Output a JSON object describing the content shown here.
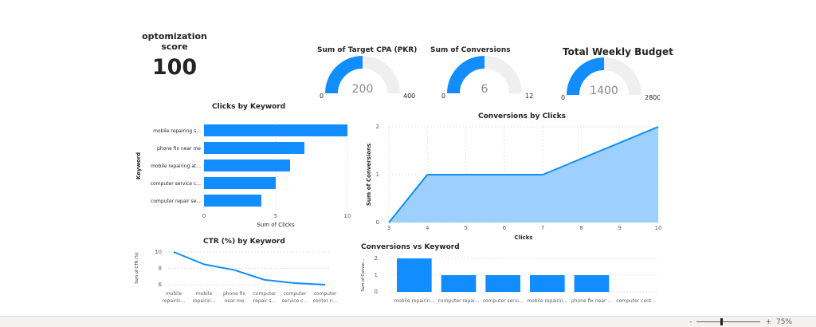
{
  "kpi": {
    "title_line1": "optomization",
    "title_line2": "score",
    "value": "100"
  },
  "gauges": [
    {
      "title": "Sum of Target CPA (PKR)",
      "min": "0",
      "value": "200",
      "max": "400",
      "fraction": 0.5
    },
    {
      "title": "Sum of Conversions",
      "min": "0",
      "value": "6",
      "max": "12",
      "fraction": 0.5
    },
    {
      "title": "Total Weekly Budget",
      "min": "0",
      "value": "1400",
      "max": "2800",
      "fraction": 0.5
    }
  ],
  "colors": {
    "accent": "#118DFF",
    "track": "#F0EFEF",
    "area": "#9ED0FF",
    "grid": "#E6E6E6",
    "text": "#605E5C"
  },
  "statusbar": {
    "minus": "-",
    "plus": "+",
    "zoom": "75%"
  },
  "chart_data": [
    {
      "id": "clicks-by-keyword",
      "type": "bar",
      "orientation": "horizontal",
      "title": "Clicks by Keyword",
      "xlabel": "Sum of Clicks",
      "ylabel": "Keyword",
      "categories": [
        "mobile repairing s...",
        "phone fix near me",
        "mobile repairing at...",
        "computer service c...",
        "computer repair se..."
      ],
      "values": [
        10,
        7,
        6,
        5,
        4
      ],
      "xlim": [
        0,
        10
      ],
      "xticks": [
        "0",
        "5",
        "10"
      ]
    },
    {
      "id": "conversions-by-clicks",
      "type": "area",
      "title": "Conversions by Clicks",
      "xlabel": "Clicks",
      "ylabel": "Sum of Conversions",
      "x": [
        3,
        4,
        7,
        10
      ],
      "y": [
        0,
        1,
        1,
        2
      ],
      "xlim": [
        3,
        10
      ],
      "ylim": [
        0,
        2
      ],
      "xticks": [
        "3",
        "4",
        "5",
        "6",
        "7",
        "8",
        "9",
        "10"
      ],
      "yticks": [
        "0",
        "1",
        "2"
      ]
    },
    {
      "id": "ctr-by-keyword",
      "type": "line",
      "title": "CTR (%) by Keyword",
      "xlabel": "",
      "ylabel": "Sum of CTR (%)",
      "categories": [
        [
          "mobile",
          "repairin..."
        ],
        [
          "mobile",
          "repairin..."
        ],
        [
          "phone fix",
          "near me"
        ],
        [
          "computer",
          "repair s..."
        ],
        [
          "computer",
          "service c..."
        ],
        [
          "computer",
          "center n..."
        ]
      ],
      "values": [
        10,
        8.5,
        7.8,
        6.6,
        6.2,
        6
      ],
      "ylim": [
        6,
        10
      ],
      "yticks": [
        "6",
        "8",
        "10"
      ]
    },
    {
      "id": "conversions-vs-keyword",
      "type": "bar",
      "title": "Conversions vs Keyword",
      "xlabel": "",
      "ylabel": "Sum of Conver...",
      "categories": [
        "mobile repairin...",
        "computer repai...",
        "computer servi...",
        "mobile repairin...",
        "phone fix near ...",
        "computer cent..."
      ],
      "values": [
        2,
        1,
        1,
        1,
        1,
        0
      ],
      "ylim": [
        0,
        2
      ],
      "yticks": [
        "0",
        "1",
        "2"
      ]
    }
  ]
}
